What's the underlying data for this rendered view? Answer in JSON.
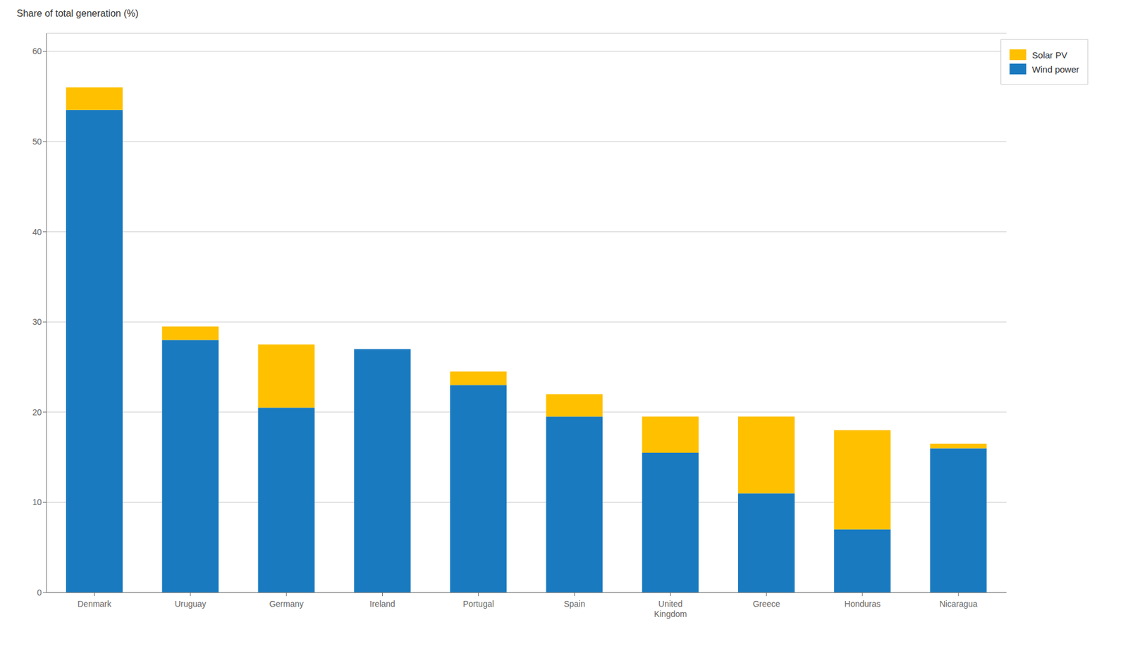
{
  "chart_data": {
    "type": "bar",
    "ylabel": "Share of total generation (%)",
    "categories": [
      "Denmark",
      "Uruguay",
      "Germany",
      "Ireland",
      "Portugal",
      "Spain",
      "United\nKingdom",
      "Greece",
      "Honduras",
      "Nicaragua"
    ],
    "series": [
      {
        "name": "Wind power",
        "color": "#1a7abf",
        "values": [
          53.5,
          28.0,
          20.5,
          27.0,
          23.0,
          19.5,
          15.5,
          11.0,
          7.0,
          16.0
        ]
      },
      {
        "name": "Solar PV",
        "color": "#ffc000",
        "values": [
          2.5,
          1.5,
          7.0,
          0.0,
          1.5,
          2.5,
          4.0,
          8.5,
          11.0,
          0.5
        ]
      }
    ],
    "stacked": true,
    "ylim": [
      0,
      62
    ],
    "yticks": [
      0,
      10,
      20,
      30,
      40,
      50,
      60
    ],
    "grid": true,
    "legend": "upper right"
  }
}
